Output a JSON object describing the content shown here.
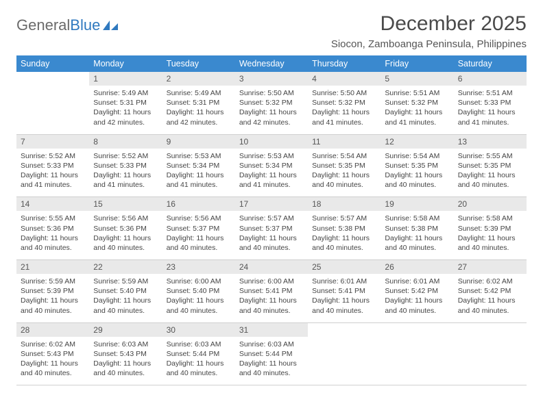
{
  "logo": {
    "text_general": "General",
    "text_blue": "Blue"
  },
  "title": "December 2025",
  "location": "Siocon, Zamboanga Peninsula, Philippines",
  "header_bg": "#3a89cf",
  "header_fg": "#ffffff",
  "daynum_bg": "#e9e9e9",
  "border_color": "#cfcfcf",
  "weekdays": [
    "Sunday",
    "Monday",
    "Tuesday",
    "Wednesday",
    "Thursday",
    "Friday",
    "Saturday"
  ],
  "weeks": [
    {
      "nums": [
        "",
        "1",
        "2",
        "3",
        "4",
        "5",
        "6"
      ],
      "cells": [
        null,
        {
          "sunrise": "5:49 AM",
          "sunset": "5:31 PM",
          "daylight": "11 hours and 42 minutes."
        },
        {
          "sunrise": "5:49 AM",
          "sunset": "5:31 PM",
          "daylight": "11 hours and 42 minutes."
        },
        {
          "sunrise": "5:50 AM",
          "sunset": "5:32 PM",
          "daylight": "11 hours and 42 minutes."
        },
        {
          "sunrise": "5:50 AM",
          "sunset": "5:32 PM",
          "daylight": "11 hours and 41 minutes."
        },
        {
          "sunrise": "5:51 AM",
          "sunset": "5:32 PM",
          "daylight": "11 hours and 41 minutes."
        },
        {
          "sunrise": "5:51 AM",
          "sunset": "5:33 PM",
          "daylight": "11 hours and 41 minutes."
        }
      ]
    },
    {
      "nums": [
        "7",
        "8",
        "9",
        "10",
        "11",
        "12",
        "13"
      ],
      "cells": [
        {
          "sunrise": "5:52 AM",
          "sunset": "5:33 PM",
          "daylight": "11 hours and 41 minutes."
        },
        {
          "sunrise": "5:52 AM",
          "sunset": "5:33 PM",
          "daylight": "11 hours and 41 minutes."
        },
        {
          "sunrise": "5:53 AM",
          "sunset": "5:34 PM",
          "daylight": "11 hours and 41 minutes."
        },
        {
          "sunrise": "5:53 AM",
          "sunset": "5:34 PM",
          "daylight": "11 hours and 41 minutes."
        },
        {
          "sunrise": "5:54 AM",
          "sunset": "5:35 PM",
          "daylight": "11 hours and 40 minutes."
        },
        {
          "sunrise": "5:54 AM",
          "sunset": "5:35 PM",
          "daylight": "11 hours and 40 minutes."
        },
        {
          "sunrise": "5:55 AM",
          "sunset": "5:35 PM",
          "daylight": "11 hours and 40 minutes."
        }
      ]
    },
    {
      "nums": [
        "14",
        "15",
        "16",
        "17",
        "18",
        "19",
        "20"
      ],
      "cells": [
        {
          "sunrise": "5:55 AM",
          "sunset": "5:36 PM",
          "daylight": "11 hours and 40 minutes."
        },
        {
          "sunrise": "5:56 AM",
          "sunset": "5:36 PM",
          "daylight": "11 hours and 40 minutes."
        },
        {
          "sunrise": "5:56 AM",
          "sunset": "5:37 PM",
          "daylight": "11 hours and 40 minutes."
        },
        {
          "sunrise": "5:57 AM",
          "sunset": "5:37 PM",
          "daylight": "11 hours and 40 minutes."
        },
        {
          "sunrise": "5:57 AM",
          "sunset": "5:38 PM",
          "daylight": "11 hours and 40 minutes."
        },
        {
          "sunrise": "5:58 AM",
          "sunset": "5:38 PM",
          "daylight": "11 hours and 40 minutes."
        },
        {
          "sunrise": "5:58 AM",
          "sunset": "5:39 PM",
          "daylight": "11 hours and 40 minutes."
        }
      ]
    },
    {
      "nums": [
        "21",
        "22",
        "23",
        "24",
        "25",
        "26",
        "27"
      ],
      "cells": [
        {
          "sunrise": "5:59 AM",
          "sunset": "5:39 PM",
          "daylight": "11 hours and 40 minutes."
        },
        {
          "sunrise": "5:59 AM",
          "sunset": "5:40 PM",
          "daylight": "11 hours and 40 minutes."
        },
        {
          "sunrise": "6:00 AM",
          "sunset": "5:40 PM",
          "daylight": "11 hours and 40 minutes."
        },
        {
          "sunrise": "6:00 AM",
          "sunset": "5:41 PM",
          "daylight": "11 hours and 40 minutes."
        },
        {
          "sunrise": "6:01 AM",
          "sunset": "5:41 PM",
          "daylight": "11 hours and 40 minutes."
        },
        {
          "sunrise": "6:01 AM",
          "sunset": "5:42 PM",
          "daylight": "11 hours and 40 minutes."
        },
        {
          "sunrise": "6:02 AM",
          "sunset": "5:42 PM",
          "daylight": "11 hours and 40 minutes."
        }
      ]
    },
    {
      "nums": [
        "28",
        "29",
        "30",
        "31",
        "",
        "",
        ""
      ],
      "cells": [
        {
          "sunrise": "6:02 AM",
          "sunset": "5:43 PM",
          "daylight": "11 hours and 40 minutes."
        },
        {
          "sunrise": "6:03 AM",
          "sunset": "5:43 PM",
          "daylight": "11 hours and 40 minutes."
        },
        {
          "sunrise": "6:03 AM",
          "sunset": "5:44 PM",
          "daylight": "11 hours and 40 minutes."
        },
        {
          "sunrise": "6:03 AM",
          "sunset": "5:44 PM",
          "daylight": "11 hours and 40 minutes."
        },
        null,
        null,
        null
      ]
    }
  ],
  "labels": {
    "sunrise_prefix": "Sunrise: ",
    "sunset_prefix": "Sunset: ",
    "daylight_prefix": "Daylight: "
  }
}
